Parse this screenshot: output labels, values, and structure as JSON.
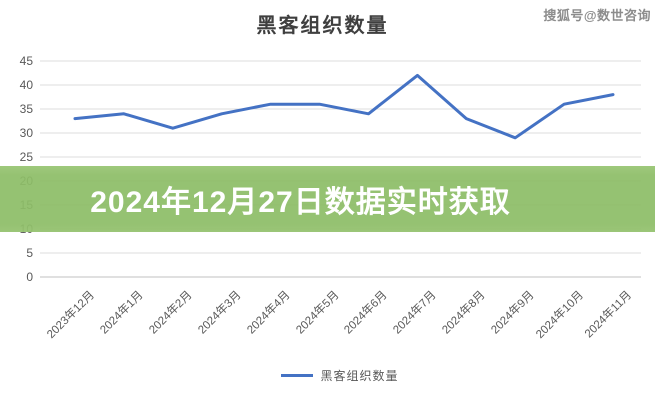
{
  "page": {
    "title": "黑客组织数量",
    "watermark": "搜狐号@数世咨询"
  },
  "banner": {
    "text": "2024年12月27日数据实时获取",
    "bg_color": "#8dbd67",
    "text_color": "#ffffff"
  },
  "chart_data": {
    "type": "line",
    "title": "黑客组织数量",
    "categories": [
      "2023年12月",
      "2024年1月",
      "2024年2月",
      "2024年3月",
      "2024年4月",
      "2024年5月",
      "2024年6月",
      "2024年7月",
      "2024年8月",
      "2024年9月",
      "2024年10月",
      "2024年11月"
    ],
    "series": [
      {
        "name": "黑客组织数量",
        "values": [
          33,
          34,
          31,
          34,
          36,
          36,
          34,
          42,
          33,
          29,
          36,
          38
        ],
        "color": "#4472c4"
      }
    ],
    "ylim": [
      0,
      45
    ],
    "yticks": [
      45,
      40,
      35,
      30,
      25,
      20,
      15,
      10,
      5,
      0
    ],
    "grid": true,
    "grid_color": "#dcdcdc",
    "axis_line_color": "#c0c0c0",
    "tick_label_color": "#595959",
    "legend_position": "bottom"
  },
  "legend": {
    "label": "黑客组织数量"
  }
}
